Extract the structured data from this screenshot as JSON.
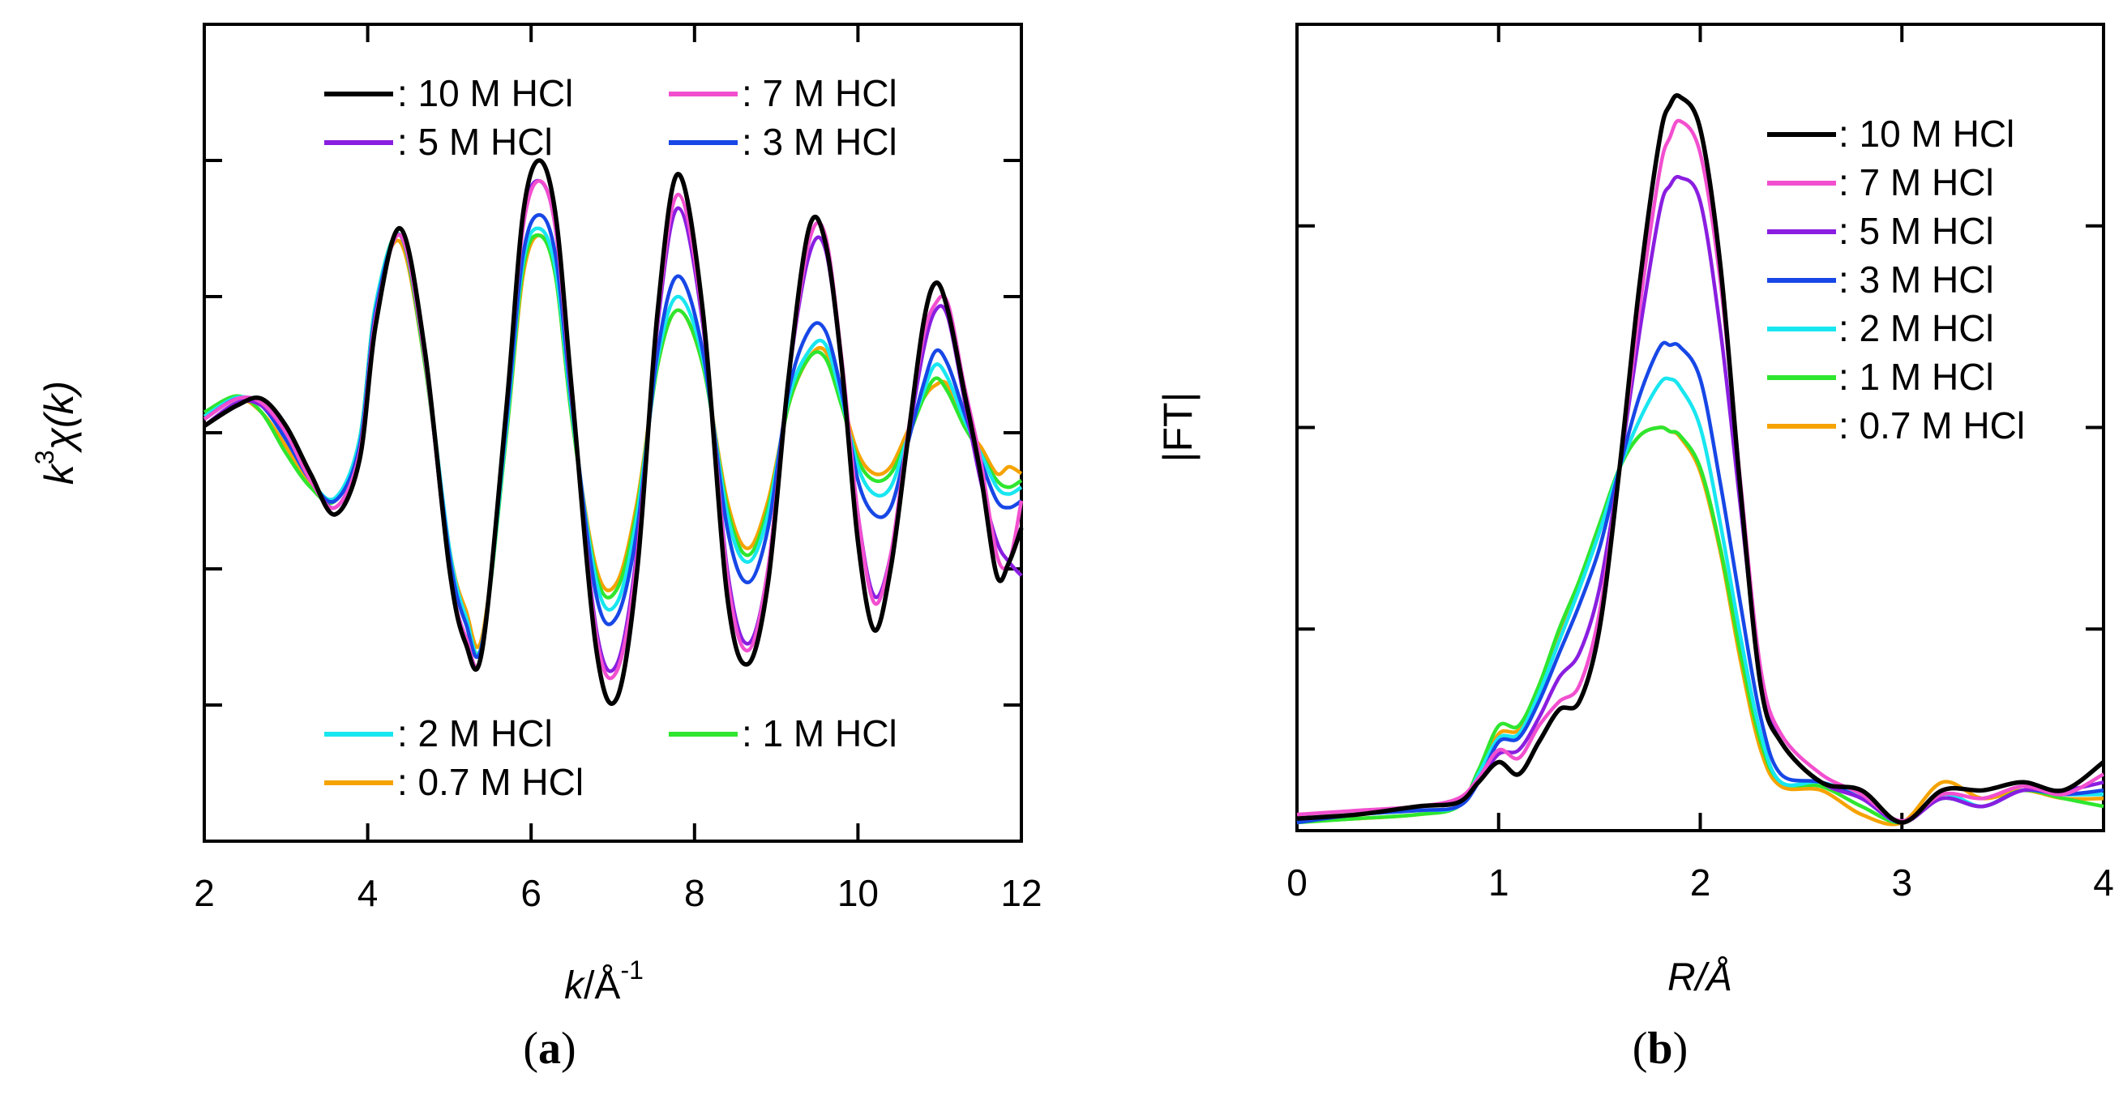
{
  "colors": {
    "10 M HCl": "#000000",
    "7 M HCl": "#f24fcf",
    "5 M HCl": "#8a1ee0",
    "3 M HCl": "#1747e6",
    "2 M HCl": "#18e6f0",
    "1 M HCl": "#2fe62f",
    "0.7 M HCl": "#f5a300"
  },
  "chart_data": [
    {
      "panel": "a",
      "type": "line",
      "caption_letter": "a",
      "xlabel_italic": "k",
      "xlabel_rest": "/Å",
      "xlabel_sup": "-1",
      "ylabel_k": "k",
      "ylabel_sup": "3",
      "ylabel_rest": "χ(k)",
      "xlim": [
        2,
        12
      ],
      "ylim": [
        -3,
        3
      ],
      "xticks": [
        2,
        4,
        6,
        8,
        10,
        12
      ],
      "xtick_labels": [
        "2",
        "4",
        "6",
        "8",
        "10",
        "12"
      ],
      "yticks_unlabeled": [
        -2,
        -1,
        0,
        1,
        2
      ],
      "legend_labels": [
        ": 10 M HCl",
        ": 7 M HCl",
        ": 5 M HCl",
        ": 3 M HCl",
        ": 2 M HCl",
        ": 1 M HCl",
        ": 0.7 M HCl"
      ],
      "x": [
        2.0,
        2.4,
        2.7,
        3.0,
        3.3,
        3.6,
        3.9,
        4.1,
        4.4,
        4.7,
        5.0,
        5.2,
        5.4,
        5.7,
        5.9,
        6.1,
        6.3,
        6.5,
        6.8,
        7.05,
        7.3,
        7.55,
        7.8,
        8.1,
        8.4,
        8.65,
        8.9,
        9.15,
        9.4,
        9.6,
        9.8,
        10.0,
        10.2,
        10.4,
        10.6,
        10.8,
        10.95,
        11.1,
        11.3,
        11.5,
        11.7,
        11.85,
        12.0
      ],
      "series": [
        {
          "name": "10 M HCl",
          "values": [
            0.05,
            0.2,
            0.25,
            0.05,
            -0.3,
            -0.6,
            -0.2,
            0.8,
            1.5,
            0.6,
            -1.0,
            -1.55,
            -1.6,
            0.2,
            1.6,
            2.0,
            1.6,
            0.3,
            -1.6,
            -1.95,
            -1.0,
            0.9,
            1.9,
            0.9,
            -1.2,
            -1.7,
            -1.1,
            0.4,
            1.5,
            1.4,
            0.5,
            -0.8,
            -1.45,
            -1.0,
            -0.1,
            0.8,
            1.1,
            0.9,
            0.3,
            -0.3,
            -1.05,
            -0.95,
            -0.7
          ]
        },
        {
          "name": "7 M HCl",
          "values": [
            0.1,
            0.25,
            0.22,
            0.0,
            -0.35,
            -0.55,
            -0.15,
            0.85,
            1.45,
            0.55,
            -1.0,
            -1.5,
            -1.6,
            0.2,
            1.5,
            1.85,
            1.5,
            0.25,
            -1.5,
            -1.75,
            -0.9,
            0.85,
            1.75,
            0.85,
            -1.05,
            -1.6,
            -1.0,
            0.4,
            1.4,
            1.45,
            0.55,
            -0.6,
            -1.25,
            -0.9,
            -0.05,
            0.7,
            0.95,
            0.95,
            0.35,
            -0.2,
            -0.9,
            -0.95,
            -0.5
          ]
        },
        {
          "name": "5 M HCl",
          "values": [
            0.05,
            0.22,
            0.2,
            0.0,
            -0.33,
            -0.55,
            -0.15,
            0.85,
            1.45,
            0.55,
            -1.0,
            -1.5,
            -1.6,
            0.2,
            1.55,
            1.85,
            1.5,
            0.25,
            -1.45,
            -1.7,
            -0.85,
            0.8,
            1.65,
            0.8,
            -1.0,
            -1.55,
            -1.0,
            0.4,
            1.3,
            1.35,
            0.5,
            -0.6,
            -1.2,
            -0.9,
            -0.1,
            0.6,
            0.9,
            0.85,
            0.25,
            -0.35,
            -0.8,
            -0.95,
            -1.05
          ]
        },
        {
          "name": "3 M HCl",
          "values": [
            0.1,
            0.25,
            0.2,
            -0.05,
            -0.35,
            -0.5,
            -0.1,
            0.9,
            1.45,
            0.55,
            -0.9,
            -1.4,
            -1.55,
            0.1,
            1.3,
            1.6,
            1.3,
            0.2,
            -1.2,
            -1.35,
            -0.7,
            0.6,
            1.15,
            0.6,
            -0.7,
            -1.1,
            -0.7,
            0.3,
            0.75,
            0.75,
            0.3,
            -0.35,
            -0.6,
            -0.55,
            -0.1,
            0.35,
            0.6,
            0.5,
            0.15,
            -0.2,
            -0.5,
            -0.55,
            -0.5
          ]
        },
        {
          "name": "2 M HCl",
          "values": [
            0.12,
            0.26,
            0.2,
            -0.05,
            -0.35,
            -0.48,
            -0.05,
            0.95,
            1.45,
            0.55,
            -0.85,
            -1.35,
            -1.55,
            0.05,
            1.25,
            1.5,
            1.2,
            0.15,
            -1.1,
            -1.25,
            -0.6,
            0.55,
            1.0,
            0.55,
            -0.6,
            -0.95,
            -0.6,
            0.25,
            0.6,
            0.65,
            0.25,
            -0.25,
            -0.45,
            -0.4,
            -0.05,
            0.3,
            0.5,
            0.4,
            0.1,
            -0.15,
            -0.4,
            -0.45,
            -0.4
          ]
        },
        {
          "name": "1 M HCl",
          "values": [
            0.15,
            0.27,
            0.15,
            -0.15,
            -0.4,
            -0.5,
            -0.05,
            0.95,
            1.45,
            0.5,
            -0.9,
            -1.35,
            -1.55,
            0.0,
            1.2,
            1.45,
            1.15,
            0.1,
            -1.05,
            -1.15,
            -0.55,
            0.5,
            0.9,
            0.5,
            -0.55,
            -0.9,
            -0.55,
            0.2,
            0.55,
            0.55,
            0.2,
            -0.2,
            -0.35,
            -0.3,
            -0.05,
            0.25,
            0.4,
            0.3,
            0.05,
            -0.15,
            -0.35,
            -0.4,
            -0.35
          ]
        },
        {
          "name": "0.7 M HCl",
          "values": [
            0.12,
            0.25,
            0.15,
            -0.1,
            -0.38,
            -0.5,
            -0.05,
            0.95,
            1.4,
            0.5,
            -0.85,
            -1.3,
            -1.5,
            0.0,
            1.15,
            1.45,
            1.15,
            0.1,
            -1.0,
            -1.1,
            -0.5,
            0.5,
            0.9,
            0.5,
            -0.5,
            -0.85,
            -0.5,
            0.2,
            0.55,
            0.6,
            0.25,
            -0.15,
            -0.3,
            -0.25,
            0.0,
            0.25,
            0.35,
            0.35,
            0.05,
            -0.1,
            -0.3,
            -0.25,
            -0.3
          ]
        }
      ]
    },
    {
      "panel": "b",
      "type": "line",
      "caption_letter": "b",
      "xlabel": "R/Å",
      "ylabel": "|FT|",
      "xlim": [
        0,
        4
      ],
      "ylim": [
        0,
        1.0
      ],
      "xticks": [
        0,
        1,
        2,
        3,
        4
      ],
      "xtick_labels": [
        "0",
        "1",
        "2",
        "3",
        "4"
      ],
      "yticks_unlabeled": [
        0.25,
        0.5,
        0.75
      ],
      "legend_labels": [
        ": 10 M HCl",
        ": 7 M HCl",
        ": 5 M HCl",
        ": 3 M HCl",
        ": 2 M HCl",
        ": 1 M HCl",
        ": 0.7 M HCl"
      ],
      "x": [
        0.0,
        0.3,
        0.6,
        0.8,
        0.9,
        1.0,
        1.1,
        1.2,
        1.3,
        1.4,
        1.5,
        1.6,
        1.7,
        1.8,
        1.85,
        1.9,
        2.0,
        2.1,
        2.2,
        2.3,
        2.4,
        2.6,
        2.8,
        3.0,
        3.2,
        3.4,
        3.6,
        3.8,
        4.0
      ],
      "series": [
        {
          "name": "10 M HCl",
          "values": [
            0.015,
            0.02,
            0.03,
            0.035,
            0.06,
            0.085,
            0.07,
            0.11,
            0.15,
            0.16,
            0.25,
            0.45,
            0.68,
            0.86,
            0.9,
            0.91,
            0.87,
            0.7,
            0.42,
            0.18,
            0.11,
            0.06,
            0.05,
            0.01,
            0.05,
            0.05,
            0.06,
            0.05,
            0.085
          ]
        },
        {
          "name": "7 M HCl",
          "values": [
            0.02,
            0.025,
            0.03,
            0.04,
            0.065,
            0.1,
            0.09,
            0.13,
            0.16,
            0.18,
            0.27,
            0.45,
            0.65,
            0.82,
            0.86,
            0.88,
            0.84,
            0.68,
            0.43,
            0.2,
            0.12,
            0.07,
            0.045,
            0.012,
            0.045,
            0.04,
            0.055,
            0.045,
            0.07
          ]
        },
        {
          "name": "5 M HCl",
          "values": [
            0.015,
            0.02,
            0.03,
            0.035,
            0.06,
            0.095,
            0.1,
            0.14,
            0.19,
            0.22,
            0.3,
            0.45,
            0.62,
            0.77,
            0.8,
            0.81,
            0.78,
            0.62,
            0.4,
            0.19,
            0.11,
            0.06,
            0.04,
            0.01,
            0.04,
            0.03,
            0.05,
            0.05,
            0.06
          ]
        },
        {
          "name": "3 M HCl",
          "values": [
            0.01,
            0.02,
            0.025,
            0.03,
            0.06,
            0.11,
            0.115,
            0.16,
            0.22,
            0.28,
            0.35,
            0.45,
            0.54,
            0.6,
            0.602,
            0.6,
            0.56,
            0.43,
            0.28,
            0.14,
            0.07,
            0.06,
            0.04,
            0.012,
            0.04,
            0.03,
            0.05,
            0.045,
            0.05
          ]
        },
        {
          "name": "2 M HCl",
          "values": [
            0.012,
            0.02,
            0.025,
            0.03,
            0.07,
            0.115,
            0.12,
            0.17,
            0.235,
            0.3,
            0.37,
            0.45,
            0.51,
            0.555,
            0.56,
            0.55,
            0.5,
            0.38,
            0.24,
            0.12,
            0.06,
            0.06,
            0.04,
            0.01,
            0.045,
            0.03,
            0.05,
            0.045,
            0.045
          ]
        },
        {
          "name": "1 M HCl",
          "values": [
            0.01,
            0.015,
            0.02,
            0.03,
            0.075,
            0.13,
            0.13,
            0.18,
            0.25,
            0.31,
            0.38,
            0.45,
            0.49,
            0.5,
            0.495,
            0.49,
            0.45,
            0.35,
            0.22,
            0.11,
            0.06,
            0.055,
            0.03,
            0.01,
            0.04,
            0.03,
            0.05,
            0.04,
            0.03
          ]
        },
        {
          "name": "0.7 M HCl",
          "values": [
            0.012,
            0.015,
            0.02,
            0.03,
            0.07,
            0.12,
            0.125,
            0.17,
            0.245,
            0.305,
            0.375,
            0.45,
            0.49,
            0.5,
            0.495,
            0.488,
            0.445,
            0.345,
            0.21,
            0.1,
            0.055,
            0.05,
            0.02,
            0.01,
            0.06,
            0.04,
            0.05,
            0.04,
            0.04
          ]
        }
      ]
    }
  ]
}
